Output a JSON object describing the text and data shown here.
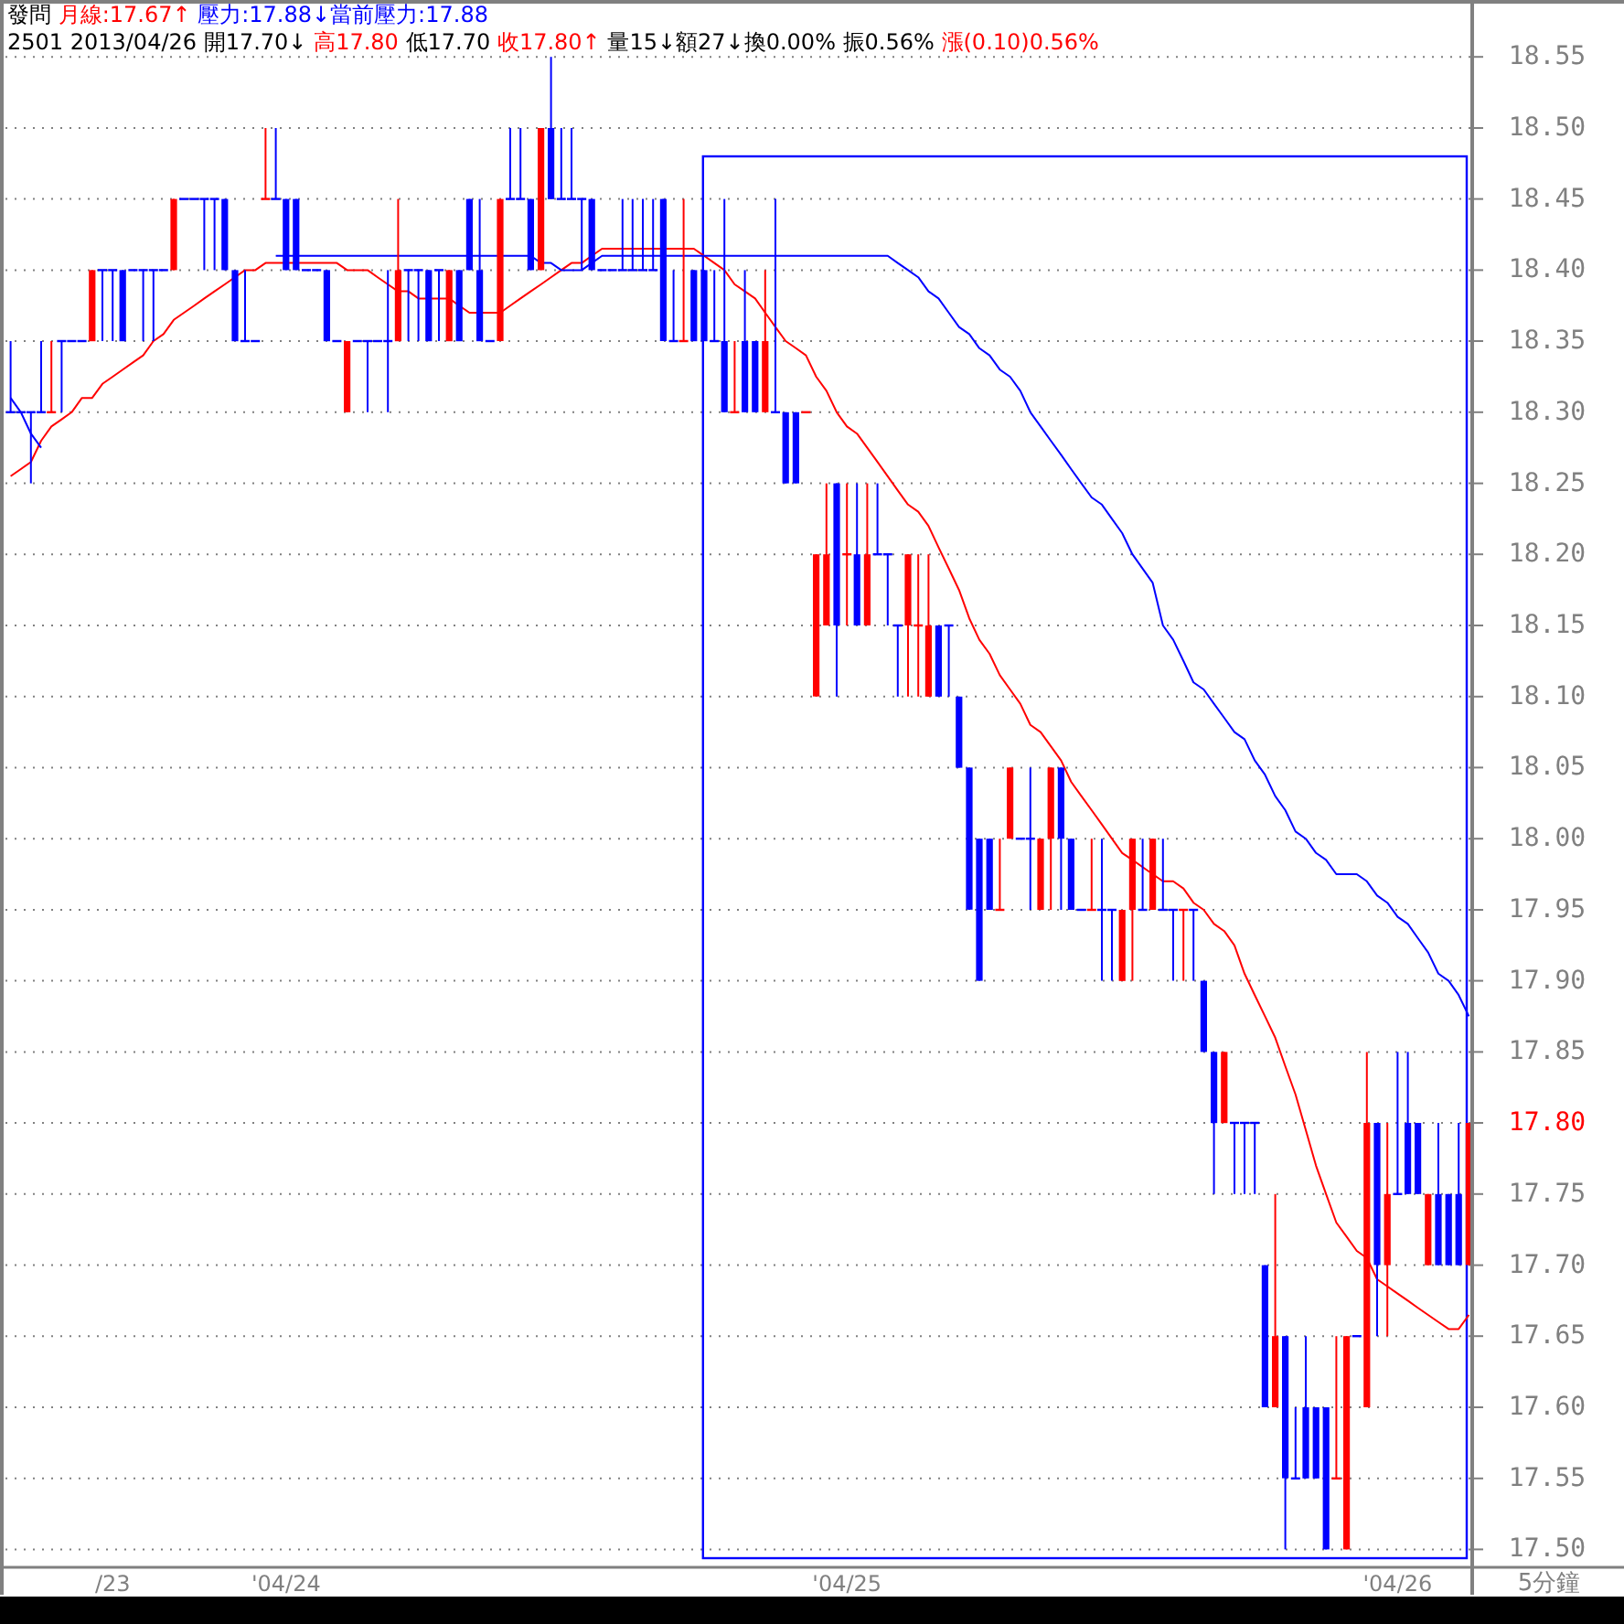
{
  "chart_data": {
    "type": "candlestick",
    "grid": "y",
    "categories": [
      null,
      null,
      null,
      null,
      null,
      null,
      null,
      null,
      null,
      null,
      "/23",
      null,
      null,
      null,
      null,
      null,
      null,
      null,
      null,
      null,
      null,
      null,
      null,
      null,
      null,
      null,
      null,
      "'04/24",
      null,
      null,
      null,
      null,
      null,
      null,
      null,
      null,
      null,
      null,
      null,
      null,
      null,
      null,
      null,
      null,
      null,
      null,
      null,
      null,
      null,
      null,
      null,
      null,
      null,
      null,
      null,
      null,
      null,
      null,
      null,
      null,
      null,
      null,
      null,
      null,
      null,
      null,
      null,
      null,
      null,
      null,
      null,
      null,
      null,
      null,
      null,
      null,
      null,
      null,
      null,
      null,
      null,
      null,
      "'04/25",
      null,
      null,
      null,
      null,
      null,
      null,
      null,
      null,
      null,
      null,
      null,
      null,
      null,
      null,
      null,
      null,
      null,
      null,
      null,
      null,
      null,
      null,
      null,
      null,
      null,
      null,
      null,
      null,
      null,
      null,
      null,
      null,
      null,
      null,
      null,
      null,
      null,
      null,
      null,
      null,
      null,
      null,
      null,
      null,
      null,
      null,
      null,
      null,
      null,
      null,
      null,
      null,
      null,
      "'04/26",
      null,
      null,
      null,
      null,
      null,
      null,
      null
    ],
    "ohlc": [
      [
        18.3,
        18.35,
        18.3,
        18.3
      ],
      [
        18.3,
        18.3,
        18.3,
        18.3
      ],
      [
        18.3,
        18.3,
        18.25,
        18.3
      ],
      [
        18.3,
        18.35,
        18.3,
        18.3
      ],
      [
        18.3,
        18.35,
        18.3,
        18.3
      ],
      [
        18.35,
        18.35,
        18.3,
        18.35
      ],
      [
        18.35,
        18.35,
        18.35,
        18.35
      ],
      [
        18.35,
        18.35,
        18.35,
        18.35
      ],
      [
        18.35,
        18.4,
        18.35,
        18.4
      ],
      [
        18.4,
        18.4,
        18.35,
        18.4
      ],
      [
        18.4,
        18.4,
        18.35,
        18.4
      ],
      [
        18.4,
        18.4,
        18.35,
        18.35
      ],
      [
        18.4,
        18.4,
        18.4,
        18.4
      ],
      [
        18.4,
        18.4,
        18.35,
        18.4
      ],
      [
        18.4,
        18.4,
        18.35,
        18.4
      ],
      [
        18.4,
        18.4,
        18.4,
        18.4
      ],
      [
        18.4,
        18.45,
        18.4,
        18.45
      ],
      [
        18.45,
        18.45,
        18.45,
        18.45
      ],
      [
        18.45,
        18.45,
        18.45,
        18.45
      ],
      [
        18.45,
        18.45,
        18.4,
        18.45
      ],
      [
        18.45,
        18.45,
        18.4,
        18.45
      ],
      [
        18.45,
        18.45,
        18.4,
        18.4
      ],
      [
        18.4,
        18.4,
        18.35,
        18.35
      ],
      [
        18.35,
        18.4,
        18.35,
        18.35
      ],
      [
        18.35,
        18.35,
        18.35,
        18.35
      ],
      [
        18.45,
        18.5,
        18.45,
        18.45
      ],
      [
        18.45,
        18.5,
        18.45,
        18.45
      ],
      [
        18.45,
        18.45,
        18.4,
        18.4
      ],
      [
        18.45,
        18.45,
        18.4,
        18.4
      ],
      [
        18.4,
        18.4,
        18.4,
        18.4
      ],
      [
        18.4,
        18.4,
        18.4,
        18.4
      ],
      [
        18.4,
        18.4,
        18.35,
        18.35
      ],
      [
        18.35,
        18.35,
        18.35,
        18.35
      ],
      [
        18.3,
        18.35,
        18.3,
        18.35
      ],
      [
        18.35,
        18.35,
        18.35,
        18.35
      ],
      [
        18.35,
        18.35,
        18.3,
        18.35
      ],
      [
        18.35,
        18.35,
        18.35,
        18.35
      ],
      [
        18.35,
        18.4,
        18.3,
        18.35
      ],
      [
        18.35,
        18.45,
        18.35,
        18.4
      ],
      [
        18.4,
        18.4,
        18.35,
        18.4
      ],
      [
        18.4,
        18.4,
        18.35,
        18.4
      ],
      [
        18.4,
        18.4,
        18.35,
        18.35
      ],
      [
        18.4,
        18.4,
        18.35,
        18.4
      ],
      [
        18.35,
        18.4,
        18.35,
        18.4
      ],
      [
        18.4,
        18.4,
        18.35,
        18.35
      ],
      [
        18.45,
        18.45,
        18.4,
        18.4
      ],
      [
        18.4,
        18.45,
        18.35,
        18.35
      ],
      [
        18.35,
        18.35,
        18.35,
        18.35
      ],
      [
        18.35,
        18.45,
        18.35,
        18.45
      ],
      [
        18.45,
        18.5,
        18.45,
        18.45
      ],
      [
        18.45,
        18.5,
        18.45,
        18.45
      ],
      [
        18.45,
        18.45,
        18.4,
        18.4
      ],
      [
        18.4,
        18.5,
        18.4,
        18.5
      ],
      [
        18.5,
        18.55,
        18.45,
        18.45
      ],
      [
        18.45,
        18.5,
        18.45,
        18.45
      ],
      [
        18.45,
        18.5,
        18.45,
        18.45
      ],
      [
        18.45,
        18.45,
        18.4,
        18.45
      ],
      [
        18.45,
        18.45,
        18.4,
        18.4
      ],
      [
        18.4,
        18.4,
        18.4,
        18.4
      ],
      [
        18.4,
        18.4,
        18.4,
        18.4
      ],
      [
        18.4,
        18.45,
        18.4,
        18.4
      ],
      [
        18.4,
        18.45,
        18.4,
        18.4
      ],
      [
        18.4,
        18.45,
        18.4,
        18.4
      ],
      [
        18.4,
        18.45,
        18.4,
        18.4
      ],
      [
        18.45,
        18.45,
        18.35,
        18.35
      ],
      [
        18.35,
        18.4,
        18.35,
        18.35
      ],
      [
        18.35,
        18.45,
        18.35,
        18.35
      ],
      [
        18.4,
        18.4,
        18.35,
        18.35
      ],
      [
        18.4,
        18.4,
        18.35,
        18.35
      ],
      [
        18.35,
        18.4,
        18.35,
        18.35
      ],
      [
        18.35,
        18.45,
        18.3,
        18.3
      ],
      [
        18.3,
        18.35,
        18.3,
        18.3
      ],
      [
        18.35,
        18.4,
        18.3,
        18.3
      ],
      [
        18.35,
        18.35,
        18.3,
        18.3
      ],
      [
        18.3,
        18.4,
        18.3,
        18.35
      ],
      [
        18.3,
        18.45,
        18.3,
        18.3
      ],
      [
        18.3,
        18.3,
        18.25,
        18.25
      ],
      [
        18.3,
        18.3,
        18.25,
        18.25
      ],
      [
        18.3,
        18.3,
        18.3,
        18.3
      ],
      [
        18.1,
        18.2,
        18.1,
        18.2
      ],
      [
        18.15,
        18.25,
        18.15,
        18.2
      ],
      [
        18.25,
        18.25,
        18.1,
        18.15
      ],
      [
        18.2,
        18.25,
        18.15,
        18.2
      ],
      [
        18.2,
        18.25,
        18.15,
        18.15
      ],
      [
        18.15,
        18.25,
        18.15,
        18.2
      ],
      [
        18.2,
        18.25,
        18.2,
        18.2
      ],
      [
        18.2,
        18.2,
        18.15,
        18.2
      ],
      [
        18.15,
        18.15,
        18.1,
        18.15
      ],
      [
        18.15,
        18.2,
        18.1,
        18.2
      ],
      [
        18.15,
        18.2,
        18.1,
        18.15
      ],
      [
        18.1,
        18.2,
        18.1,
        18.15
      ],
      [
        18.15,
        18.15,
        18.1,
        18.1
      ],
      [
        18.15,
        18.15,
        18.1,
        18.15
      ],
      [
        18.1,
        18.1,
        18.05,
        18.05
      ],
      [
        18.05,
        18.05,
        17.95,
        17.95
      ],
      [
        18.0,
        18.0,
        17.9,
        17.9
      ],
      [
        18.0,
        18.0,
        17.95,
        17.95
      ],
      [
        17.95,
        18.0,
        17.95,
        17.95
      ],
      [
        18.0,
        18.05,
        18.0,
        18.05
      ],
      [
        18.0,
        18.0,
        18.0,
        18.0
      ],
      [
        18.0,
        18.05,
        17.95,
        18.0
      ],
      [
        17.95,
        18.0,
        17.95,
        18.0
      ],
      [
        18.0,
        18.05,
        17.95,
        18.05
      ],
      [
        18.05,
        18.05,
        17.95,
        18.0
      ],
      [
        18.0,
        18.0,
        17.95,
        17.95
      ],
      [
        17.95,
        17.95,
        17.95,
        17.95
      ],
      [
        17.95,
        18.0,
        17.95,
        17.95
      ],
      [
        17.95,
        18.0,
        17.9,
        17.95
      ],
      [
        17.95,
        17.95,
        17.9,
        17.95
      ],
      [
        17.9,
        17.95,
        17.9,
        17.95
      ],
      [
        17.95,
        18.0,
        17.9,
        18.0
      ],
      [
        17.95,
        18.0,
        17.95,
        17.95
      ],
      [
        17.95,
        18.0,
        17.95,
        18.0
      ],
      [
        17.95,
        18.0,
        17.95,
        17.95
      ],
      [
        17.95,
        17.95,
        17.9,
        17.95
      ],
      [
        17.95,
        17.95,
        17.9,
        17.95
      ],
      [
        17.95,
        17.95,
        17.9,
        17.95
      ],
      [
        17.9,
        17.9,
        17.85,
        17.85
      ],
      [
        17.85,
        17.85,
        17.75,
        17.8
      ],
      [
        17.8,
        17.85,
        17.8,
        17.85
      ],
      [
        17.8,
        17.8,
        17.75,
        17.8
      ],
      [
        17.8,
        17.8,
        17.75,
        17.8
      ],
      [
        17.8,
        17.8,
        17.75,
        17.8
      ],
      [
        17.7,
        17.7,
        17.6,
        17.6
      ],
      [
        17.6,
        17.75,
        17.6,
        17.65
      ],
      [
        17.65,
        17.65,
        17.5,
        17.55
      ],
      [
        17.55,
        17.6,
        17.55,
        17.55
      ],
      [
        17.6,
        17.65,
        17.55,
        17.55
      ],
      [
        17.6,
        17.6,
        17.55,
        17.55
      ],
      [
        17.6,
        17.6,
        17.5,
        17.5
      ],
      [
        17.55,
        17.65,
        17.55,
        17.55
      ],
      [
        17.5,
        17.65,
        17.5,
        17.65
      ],
      [
        17.65,
        17.65,
        17.65,
        17.65
      ],
      [
        17.6,
        17.85,
        17.6,
        17.8
      ],
      [
        17.8,
        17.8,
        17.65,
        17.7
      ],
      [
        17.7,
        17.8,
        17.65,
        17.75
      ],
      [
        17.75,
        17.85,
        17.75,
        17.75
      ],
      [
        17.8,
        17.85,
        17.75,
        17.75
      ],
      [
        17.8,
        17.8,
        17.75,
        17.75
      ],
      [
        17.7,
        17.75,
        17.7,
        17.75
      ],
      [
        17.75,
        17.8,
        17.7,
        17.7
      ],
      [
        17.75,
        17.75,
        17.7,
        17.7
      ],
      [
        17.75,
        17.8,
        17.7,
        17.7
      ],
      [
        17.7,
        17.8,
        17.7,
        17.8
      ]
    ],
    "colors": [
      "#0000ff",
      "#0000ff",
      "#0000ff",
      "#0000ff",
      "#ff0000",
      "#0000ff",
      "#0000ff",
      "#0000ff",
      "#ff0000",
      "#0000ff",
      "#0000ff",
      "#0000ff",
      "#0000ff",
      "#0000ff",
      "#0000ff",
      "#0000ff",
      "#ff0000",
      "#0000ff",
      "#0000ff",
      "#0000ff",
      "#0000ff",
      "#0000ff",
      "#0000ff",
      "#0000ff",
      "#0000ff",
      "#ff0000",
      "#0000ff",
      "#0000ff",
      "#0000ff",
      "#0000ff",
      "#0000ff",
      "#0000ff",
      "#0000ff",
      "#ff0000",
      "#0000ff",
      "#0000ff",
      "#0000ff",
      "#0000ff",
      "#ff0000",
      "#0000ff",
      "#0000ff",
      "#0000ff",
      "#0000ff",
      "#ff0000",
      "#0000ff",
      "#0000ff",
      "#0000ff",
      "#0000ff",
      "#ff0000",
      "#0000ff",
      "#0000ff",
      "#0000ff",
      "#ff0000",
      "#0000ff",
      "#0000ff",
      "#0000ff",
      "#0000ff",
      "#0000ff",
      "#0000ff",
      "#0000ff",
      "#0000ff",
      "#0000ff",
      "#0000ff",
      "#0000ff",
      "#0000ff",
      "#0000ff",
      "#ff0000",
      "#0000ff",
      "#0000ff",
      "#0000ff",
      "#0000ff",
      "#ff0000",
      "#0000ff",
      "#0000ff",
      "#ff0000",
      "#0000ff",
      "#0000ff",
      "#0000ff",
      "#ff0000",
      "#ff0000",
      "#ff0000",
      "#0000ff",
      "#ff0000",
      "#0000ff",
      "#ff0000",
      "#0000ff",
      "#0000ff",
      "#0000ff",
      "#ff0000",
      "#ff0000",
      "#ff0000",
      "#0000ff",
      "#0000ff",
      "#0000ff",
      "#0000ff",
      "#0000ff",
      "#0000ff",
      "#ff0000",
      "#ff0000",
      "#0000ff",
      "#0000ff",
      "#ff0000",
      "#ff0000",
      "#0000ff",
      "#0000ff",
      "#0000ff",
      "#ff0000",
      "#0000ff",
      "#0000ff",
      "#ff0000",
      "#ff0000",
      "#0000ff",
      "#ff0000",
      "#0000ff",
      "#0000ff",
      "#ff0000",
      "#0000ff",
      "#0000ff",
      "#0000ff",
      "#ff0000",
      "#0000ff",
      "#0000ff",
      "#0000ff",
      "#0000ff",
      "#ff0000",
      "#0000ff",
      "#0000ff",
      "#0000ff",
      "#0000ff",
      "#0000ff",
      "#ff0000",
      "#ff0000",
      "#0000ff",
      "#ff0000",
      "#0000ff",
      "#ff0000",
      "#0000ff",
      "#0000ff",
      "#0000ff",
      "#ff0000",
      "#0000ff",
      "#0000ff",
      "#0000ff",
      "#ff0000"
    ],
    "series": [
      {
        "type": "line",
        "color": "#ff0000",
        "values": [
          18.255,
          18.26,
          18.265,
          18.28,
          18.29,
          18.295,
          18.3,
          18.31,
          18.31,
          18.32,
          18.325,
          18.33,
          18.335,
          18.34,
          18.35,
          18.355,
          18.365,
          18.37,
          18.375,
          18.38,
          18.385,
          18.39,
          18.395,
          18.4,
          18.4,
          18.405,
          18.405,
          18.405,
          18.405,
          18.405,
          18.405,
          18.405,
          18.405,
          18.4,
          18.4,
          18.4,
          18.395,
          18.39,
          18.385,
          18.385,
          18.38,
          18.38,
          18.38,
          18.38,
          18.375,
          18.37,
          18.37,
          18.37,
          18.37,
          18.375,
          18.38,
          18.385,
          18.39,
          18.395,
          18.4,
          18.405,
          18.405,
          18.41,
          18.415,
          18.415,
          18.415,
          18.415,
          18.415,
          18.415,
          18.415,
          18.415,
          18.415,
          18.415,
          18.41,
          18.405,
          18.4,
          18.39,
          18.385,
          18.38,
          18.37,
          18.36,
          18.35,
          18.345,
          18.34,
          18.325,
          18.315,
          18.3,
          18.29,
          18.285,
          18.275,
          18.265,
          18.255,
          18.245,
          18.235,
          18.23,
          18.22,
          18.205,
          18.19,
          18.175,
          18.155,
          18.14,
          18.13,
          18.115,
          18.105,
          18.095,
          18.08,
          18.075,
          18.065,
          18.055,
          18.04,
          18.03,
          18.02,
          18.01,
          18.0,
          17.99,
          17.985,
          17.98,
          17.975,
          17.97,
          17.97,
          17.965,
          17.955,
          17.95,
          17.94,
          17.935,
          17.925,
          17.905,
          17.89,
          17.875,
          17.86,
          17.84,
          17.82,
          17.795,
          17.77,
          17.75,
          17.73,
          17.72,
          17.71,
          17.705,
          17.69,
          17.685,
          17.68,
          17.675,
          17.67,
          17.665,
          17.66,
          17.655,
          17.655,
          17.665
        ]
      },
      {
        "type": "line",
        "color": "#0000ff",
        "values": [
          18.31,
          18.3,
          18.285,
          18.275,
          null,
          null,
          null,
          null,
          null,
          null,
          null,
          null,
          null,
          null,
          null,
          null,
          null,
          null,
          null,
          null,
          null,
          null,
          null,
          null,
          null,
          null,
          18.41,
          18.41,
          18.41,
          18.41,
          18.41,
          18.41,
          18.41,
          18.41,
          18.41,
          18.41,
          18.41,
          18.41,
          18.41,
          18.41,
          18.41,
          18.41,
          18.41,
          18.41,
          18.41,
          18.41,
          18.41,
          18.41,
          18.41,
          18.41,
          18.41,
          18.41,
          18.405,
          18.405,
          18.4,
          18.4,
          18.4,
          18.405,
          18.41,
          18.41,
          18.41,
          18.41,
          18.41,
          18.41,
          18.41,
          18.41,
          18.41,
          18.41,
          18.41,
          18.41,
          18.41,
          18.41,
          18.41,
          18.41,
          18.41,
          18.41,
          18.41,
          18.41,
          18.41,
          18.41,
          18.41,
          18.41,
          18.41,
          18.41,
          18.41,
          18.41,
          18.41,
          18.405,
          18.4,
          18.395,
          18.385,
          18.38,
          18.37,
          18.36,
          18.355,
          18.345,
          18.34,
          18.33,
          18.325,
          18.315,
          18.3,
          18.29,
          18.28,
          18.27,
          18.26,
          18.25,
          18.24,
          18.235,
          18.225,
          18.215,
          18.2,
          18.19,
          18.18,
          18.15,
          18.14,
          18.125,
          18.11,
          18.105,
          18.095,
          18.085,
          18.075,
          18.07,
          18.055,
          18.045,
          18.03,
          18.02,
          18.005,
          18.0,
          17.99,
          17.985,
          17.975,
          17.975,
          17.975,
          17.97,
          17.96,
          17.955,
          17.945,
          17.94,
          17.93,
          17.92,
          17.905,
          17.9,
          17.89,
          17.875
        ]
      }
    ],
    "xlabel": "5分鐘",
    "ylim": [
      17.49,
      18.59
    ],
    "yticks": [
      {
        "value": 17.5,
        "label": "17.50"
      },
      {
        "value": 17.55,
        "label": "17.55"
      },
      {
        "value": 17.6,
        "label": "17.60"
      },
      {
        "value": 17.65,
        "label": "17.65"
      },
      {
        "value": 17.7,
        "label": "17.70"
      },
      {
        "value": 17.75,
        "label": "17.75"
      },
      {
        "value": 17.8,
        "label": "17.80"
      },
      {
        "value": 17.85,
        "label": "17.85"
      },
      {
        "value": 17.9,
        "label": "17.90"
      },
      {
        "value": 17.95,
        "label": "17.95"
      },
      {
        "value": 18.0,
        "label": "18.00"
      },
      {
        "value": 18.05,
        "label": "18.05"
      },
      {
        "value": 18.1,
        "label": "18.10"
      },
      {
        "value": 18.15,
        "label": "18.15"
      },
      {
        "value": 18.2,
        "label": "18.20"
      },
      {
        "value": 18.25,
        "label": "18.25"
      },
      {
        "value": 18.3,
        "label": "18.30"
      },
      {
        "value": 18.35,
        "label": "18.35"
      },
      {
        "value": 18.4,
        "label": "18.40"
      },
      {
        "value": 18.45,
        "label": "18.45"
      },
      {
        "value": 18.5,
        "label": "18.50"
      },
      {
        "value": 18.55,
        "label": "18.55"
      }
    ],
    "annotations": [
      "發問",
      "月線:17.67↑",
      "壓力:17.88↓當前壓力:17.88",
      "2501 2013/04/26 開17.70↓",
      "高17.80",
      "低17.70",
      "收17.80↑",
      "量15↓額27↓換0.00% 振0.56%",
      "漲(0.10)0.56%"
    ]
  }
}
